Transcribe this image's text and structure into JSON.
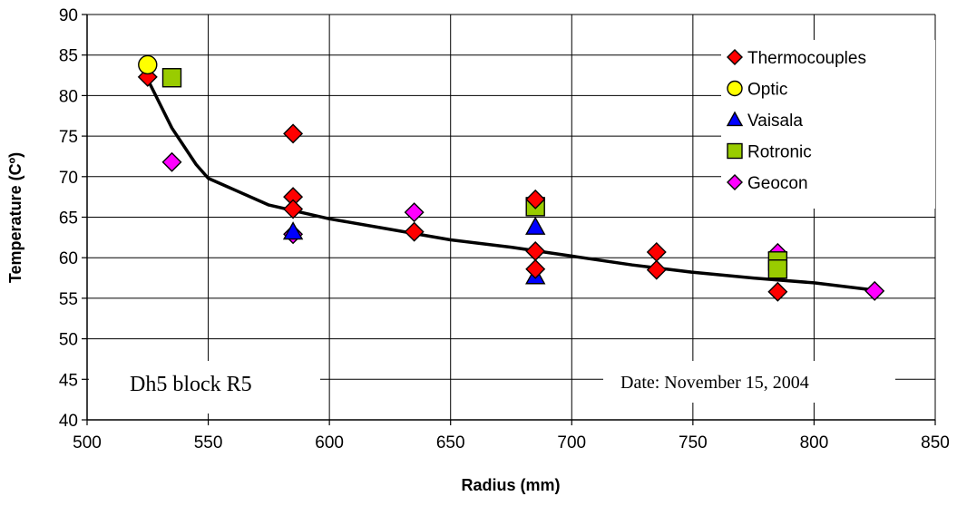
{
  "chart_data": {
    "type": "scatter",
    "title": "",
    "xlabel": "Radius (mm)",
    "ylabel": "Temperature (Cº)",
    "xlim": [
      500,
      850
    ],
    "ylim": [
      40,
      90
    ],
    "xticks": [
      500,
      550,
      600,
      650,
      700,
      750,
      800,
      850
    ],
    "yticks": [
      40,
      45,
      50,
      55,
      60,
      65,
      70,
      75,
      80,
      85,
      90
    ],
    "grid": true,
    "legend_position": "top-right",
    "series": [
      {
        "name": "Thermocouples",
        "marker": "diamond",
        "color": "#ff0000",
        "points": [
          [
            525,
            82.3
          ],
          [
            585,
            75.3
          ],
          [
            585,
            67.5
          ],
          [
            585,
            66.0
          ],
          [
            635,
            63.2
          ],
          [
            685,
            67.2
          ],
          [
            685,
            60.8
          ],
          [
            685,
            58.6
          ],
          [
            735,
            60.7
          ],
          [
            735,
            58.5
          ],
          [
            785,
            55.8
          ]
        ]
      },
      {
        "name": "Optic",
        "marker": "circle",
        "color": "#ffff00",
        "points": [
          [
            525,
            83.8
          ]
        ]
      },
      {
        "name": "Vaisala",
        "marker": "triangle",
        "color": "#0000ff",
        "points": [
          [
            585,
            63.2
          ],
          [
            685,
            63.8
          ],
          [
            685,
            57.7
          ]
        ]
      },
      {
        "name": "Rotronic",
        "marker": "square",
        "color": "#99cc00",
        "points": [
          [
            535,
            82.2
          ],
          [
            685,
            66.3
          ],
          [
            785,
            59.6
          ],
          [
            785,
            58.6
          ]
        ]
      },
      {
        "name": "Geocon",
        "marker": "diamond",
        "color": "#ff00ff",
        "points": [
          [
            535,
            71.8
          ],
          [
            585,
            62.9
          ],
          [
            635,
            65.6
          ],
          [
            785,
            60.6
          ],
          [
            825,
            55.9
          ]
        ]
      }
    ],
    "trend_line": {
      "color": "#000000",
      "points": [
        [
          525,
          82.0
        ],
        [
          535,
          76.0
        ],
        [
          545,
          71.5
        ],
        [
          550,
          69.8
        ],
        [
          575,
          66.5
        ],
        [
          600,
          64.8
        ],
        [
          625,
          63.5
        ],
        [
          650,
          62.2
        ],
        [
          675,
          61.3
        ],
        [
          700,
          60.2
        ],
        [
          725,
          59.1
        ],
        [
          750,
          58.2
        ],
        [
          775,
          57.5
        ],
        [
          800,
          56.9
        ],
        [
          825,
          56.0
        ]
      ]
    },
    "annotations": [
      {
        "text": "Dh5 block R5"
      },
      {
        "text": "Date: November 15, 2004"
      }
    ]
  }
}
